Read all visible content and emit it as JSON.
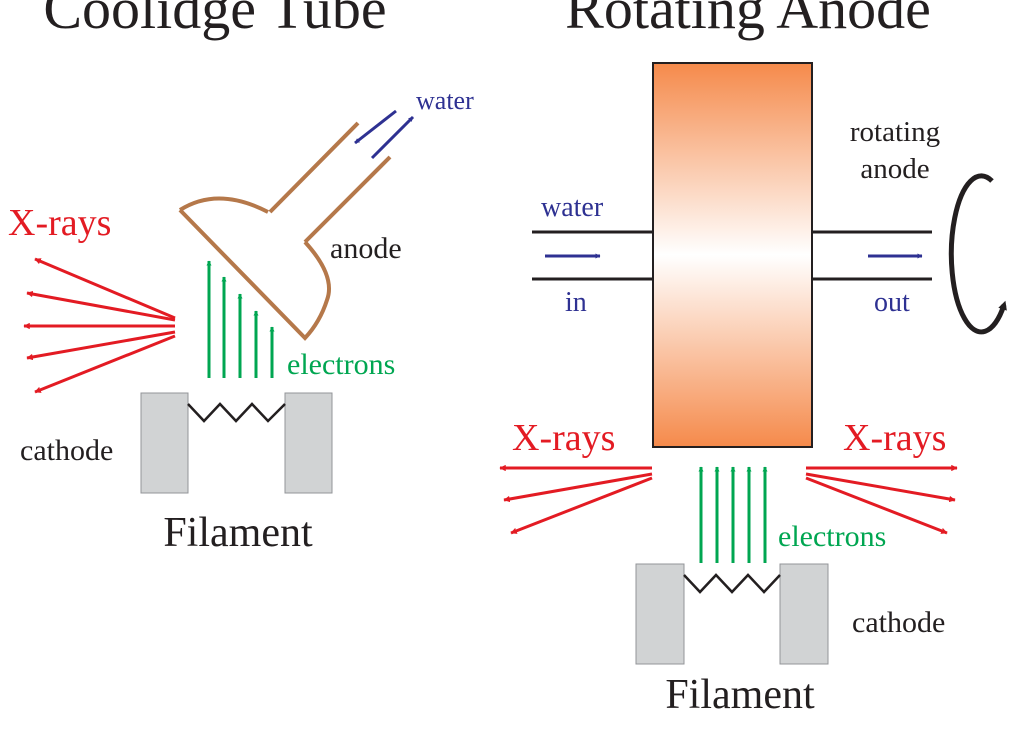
{
  "colors": {
    "xray": "#e31b23",
    "electron": "#00a651",
    "water": "#2e3192",
    "copper": "#b5784a",
    "text": "#231f20",
    "cathode_fill": "#d1d3d4",
    "anode_gradient": [
      "#f58a4b",
      "#ffffff",
      "#f58a4b"
    ]
  },
  "coolidge": {
    "title": "Coolidge Tube",
    "water_label": "water",
    "xrays_label": "X-rays",
    "anode_label": "anode",
    "electrons_label": "electrons",
    "cathode_label": "cathode",
    "filament_label": "Filament"
  },
  "rotating": {
    "title": "Rotating Anode",
    "rotating_anode_label_line1": "rotating",
    "rotating_anode_label_line2": "anode",
    "water_label": "water",
    "in_label": "in",
    "out_label": "out",
    "xrays_left_label": "X-rays",
    "xrays_right_label": "X-rays",
    "electrons_label": "electrons",
    "cathode_label": "cathode",
    "filament_label": "Filament"
  },
  "icons": [
    "arrow-icon",
    "rotation-arrow-icon",
    "filament-zigzag-icon"
  ]
}
